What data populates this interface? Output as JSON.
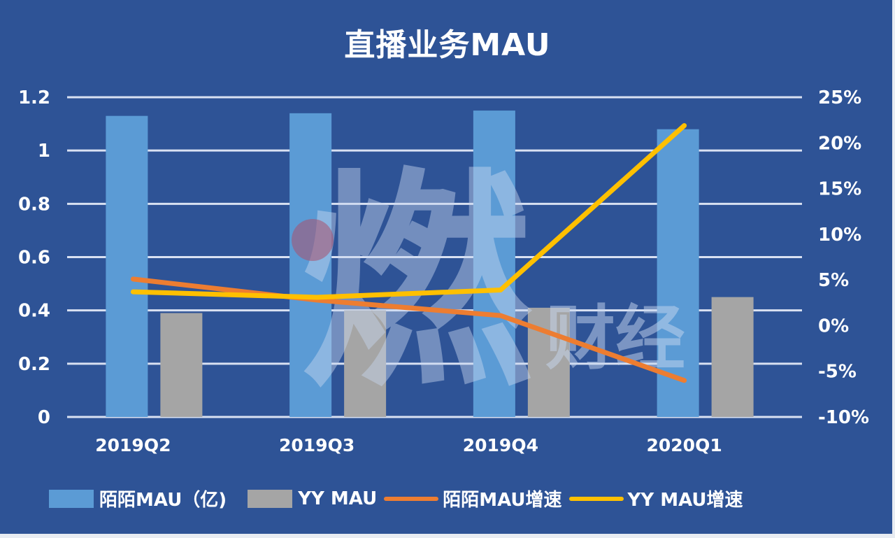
{
  "chart_data": {
    "type": "bar+line",
    "title": "直播业务MAU",
    "categories": [
      "2019Q2",
      "2019Q3",
      "2019Q4",
      "2020Q1"
    ],
    "series": [
      {
        "name": "陌陌MAU（亿)",
        "type": "bar",
        "axis": "left",
        "color": "#5b9bd5",
        "values": [
          1.13,
          1.14,
          1.15,
          1.08
        ]
      },
      {
        "name": "YY MAU",
        "type": "bar",
        "axis": "left",
        "color": "#a5a5a5",
        "values": [
          0.39,
          0.4,
          0.41,
          0.45
        ]
      },
      {
        "name": "陌陌MAU增速",
        "type": "line",
        "axis": "right",
        "color": "#ed7d31",
        "values": [
          5.1,
          2.8,
          1.1,
          -6.0
        ]
      },
      {
        "name": "YY MAU增速",
        "type": "line",
        "axis": "right",
        "color": "#ffc000",
        "values": [
          3.7,
          3.1,
          3.9,
          21.9
        ]
      }
    ],
    "left_axis": {
      "ylim": [
        0,
        1.2
      ],
      "ticks": [
        "0",
        "0.2",
        "0.4",
        "0.6",
        "0.8",
        "1",
        "1.2"
      ]
    },
    "right_axis": {
      "ylim": [
        -10,
        25
      ],
      "unit": "%",
      "ticks": [
        "-10%",
        "-5%",
        "0%",
        "5%",
        "10%",
        "15%",
        "20%",
        "25%"
      ]
    },
    "grid": true,
    "legend_position": "bottom",
    "xlabel": "",
    "ylabel": ""
  },
  "legend": [
    {
      "label": "陌陌MAU（亿)",
      "kind": "bar",
      "color": "#5b9bd5"
    },
    {
      "label": "YY MAU",
      "kind": "bar",
      "color": "#a5a5a5"
    },
    {
      "label": "陌陌MAU增速",
      "kind": "line",
      "color": "#ed7d31"
    },
    {
      "label": "YY MAU增速",
      "kind": "line",
      "color": "#ffc000"
    }
  ],
  "watermark": {
    "text": "财经",
    "logo": "燃"
  },
  "colors": {
    "background": "#2e5396",
    "grid": "#d9e1f2"
  }
}
